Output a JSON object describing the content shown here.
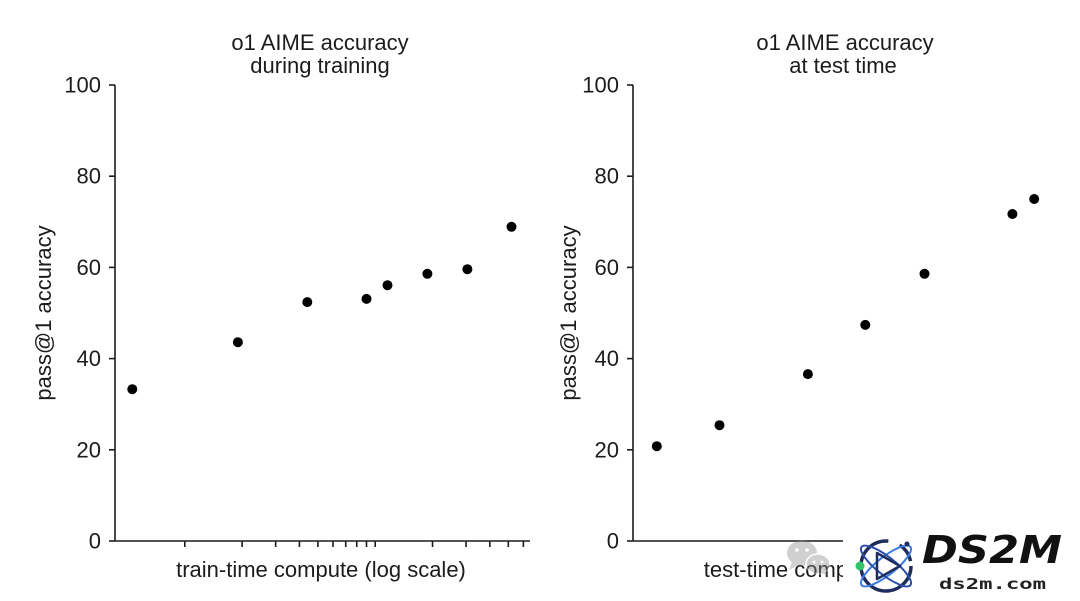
{
  "figure": {
    "background": "#ffffff",
    "text_color": "#1c1c1c",
    "axis_color": "#1c1c1c",
    "marker_color": "#000000"
  },
  "chart_data": [
    {
      "type": "scatter",
      "title": [
        "o1 AIME accuracy",
        "during training"
      ],
      "xlabel": "train-time compute (log scale)",
      "ylabel": "pass@1 accuracy",
      "xscale": "log",
      "xlim": [
        0.43,
        65
      ],
      "ylim": [
        0,
        100
      ],
      "yticks": [
        0,
        20,
        40,
        60,
        80,
        100
      ],
      "x_tick_labels": false,
      "x_minor_ticks": true,
      "grid": false,
      "legend": "none",
      "x": [
        0.53,
        1.9,
        4.4,
        9.0,
        11.6,
        18.8,
        30.5,
        52
      ],
      "y": [
        33.3,
        43.6,
        52.4,
        53.1,
        56.1,
        58.6,
        59.6,
        68.9
      ]
    },
    {
      "type": "scatter",
      "title": [
        "o1 AIME accuracy",
        "at test time"
      ],
      "xlabel": "test-time compute (log scale)",
      "ylabel": "pass@1 accuracy",
      "xscale": "log",
      "xlim": [
        1,
        100
      ],
      "ylim": [
        0,
        100
      ],
      "yticks": [
        0,
        20,
        40,
        60,
        80,
        100
      ],
      "x_tick_labels": false,
      "x_minor_ticks": false,
      "grid": false,
      "legend": "none",
      "x": [
        1.3,
        2.6,
        6.9,
        13,
        25,
        66,
        84
      ],
      "y": [
        20.8,
        25.4,
        36.6,
        47.4,
        58.6,
        71.7,
        75.0
      ]
    }
  ],
  "watermark": {
    "brand": "DS2M",
    "site": "ds2m.com",
    "logo_icon": "atom-logo-icon",
    "social_icon": "wechat-icon",
    "colors": {
      "panel": "#ffffff",
      "ring": "#1f2d5c",
      "orbit_a": "#3a7be0",
      "orbit_b": "#2a4fa8",
      "dot": "#33c46b",
      "social": "#8c8c8c"
    }
  }
}
